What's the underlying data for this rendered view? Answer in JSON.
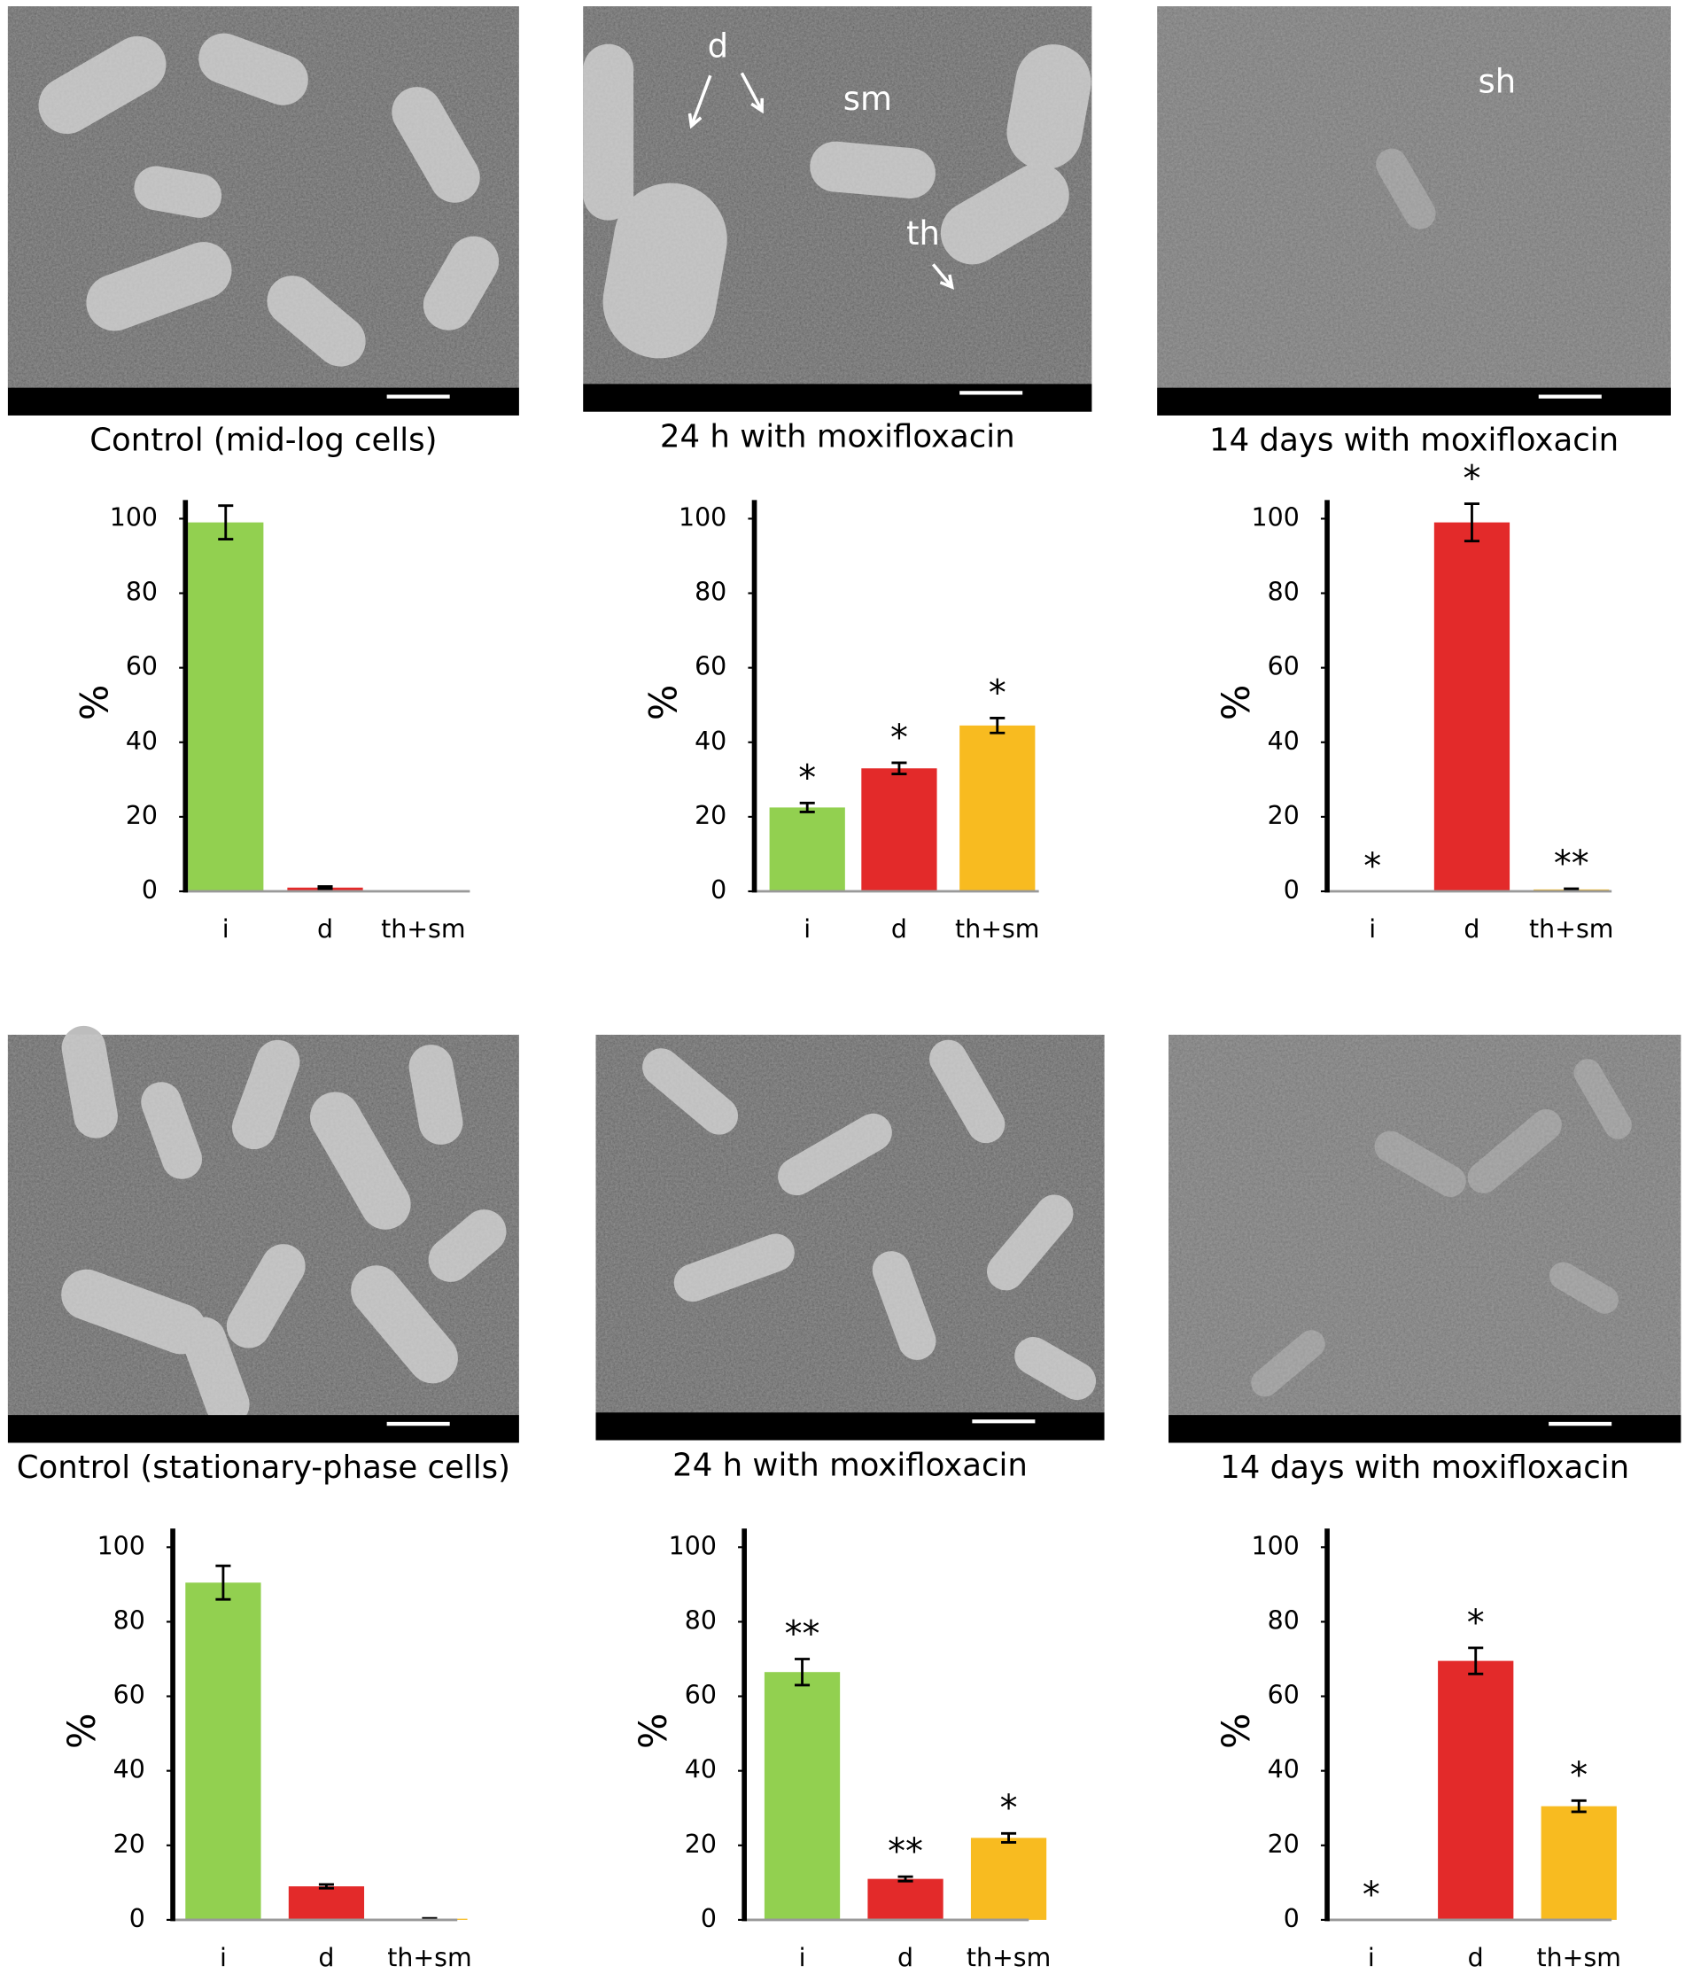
{
  "chart_data": [
    {
      "type": "bar",
      "ylabel": "%",
      "categories": [
        "i",
        "d",
        "th+sm"
      ],
      "values": [
        99,
        1,
        0
      ],
      "errors": [
        4.5,
        0.3,
        0
      ],
      "colors": [
        "#92d050",
        "#e32a2a",
        "#f8bb20"
      ],
      "ylim": [
        0,
        105
      ],
      "yticks": [
        0,
        20,
        40,
        60,
        80,
        100
      ]
    },
    {
      "type": "bar",
      "ylabel": "%",
      "categories": [
        "i",
        "d",
        "th+sm"
      ],
      "values": [
        22.5,
        33,
        44.5
      ],
      "errors": [
        1.2,
        1.5,
        2
      ],
      "colors": [
        "#92d050",
        "#e32a2a",
        "#f8bb20"
      ],
      "significance": [
        "*",
        "*",
        "*"
      ],
      "ylim": [
        0,
        105
      ],
      "yticks": [
        0,
        20,
        40,
        60,
        80,
        100
      ]
    },
    {
      "type": "bar",
      "ylabel": "%",
      "categories": [
        "i",
        "d",
        "th+sm"
      ],
      "values": [
        0,
        99,
        0.5
      ],
      "errors": [
        0,
        5,
        0.2
      ],
      "colors": [
        "#92d050",
        "#e32a2a",
        "#f8bb20"
      ],
      "significance": [
        "*",
        "*",
        "**"
      ],
      "ylim": [
        0,
        105
      ],
      "yticks": [
        0,
        20,
        40,
        60,
        80,
        100
      ]
    },
    {
      "type": "bar",
      "ylabel": "%",
      "categories": [
        "i",
        "d",
        "th+sm"
      ],
      "values": [
        90.5,
        9,
        0.3
      ],
      "errors": [
        4.5,
        0.5,
        0.1
      ],
      "colors": [
        "#92d050",
        "#e32a2a",
        "#f8bb20"
      ],
      "ylim": [
        0,
        105
      ],
      "yticks": [
        0,
        20,
        40,
        60,
        80,
        100
      ]
    },
    {
      "type": "bar",
      "ylabel": "%",
      "categories": [
        "i",
        "d",
        "th+sm"
      ],
      "values": [
        66.5,
        11,
        22
      ],
      "errors": [
        3.5,
        0.6,
        1.2
      ],
      "colors": [
        "#92d050",
        "#e32a2a",
        "#f8bb20"
      ],
      "significance": [
        "**",
        "**",
        "*"
      ],
      "ylim": [
        0,
        105
      ],
      "yticks": [
        0,
        20,
        40,
        60,
        80,
        100
      ]
    },
    {
      "type": "bar",
      "ylabel": "%",
      "categories": [
        "i",
        "d",
        "th+sm"
      ],
      "values": [
        0,
        69.5,
        30.5
      ],
      "errors": [
        0,
        3.5,
        1.5
      ],
      "colors": [
        "#92d050",
        "#e32a2a",
        "#f8bb20"
      ],
      "significance": [
        "*",
        "*",
        "*"
      ],
      "ylim": [
        0,
        105
      ],
      "yticks": [
        0,
        20,
        40,
        60,
        80,
        100
      ]
    }
  ],
  "images": [
    {
      "caption": "Control (mid-log cells)"
    },
    {
      "caption": "24 h with moxifloxacin",
      "labels": [
        "d",
        "sm",
        "th"
      ]
    },
    {
      "caption": "14 days with moxifloxacin",
      "labels": [
        "sh"
      ]
    },
    {
      "caption": "Control (stationary-phase cells)"
    },
    {
      "caption": "24 h with moxifloxacin"
    },
    {
      "caption": "14 days with moxifloxacin"
    }
  ]
}
